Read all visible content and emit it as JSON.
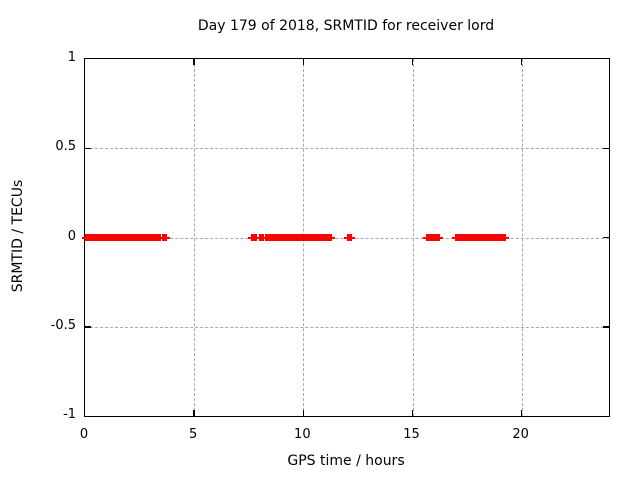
{
  "chart_data": {
    "type": "scatter",
    "title": "Day 179 of 2018, SRMTID for receiver lord",
    "xlabel": "GPS time / hours",
    "ylabel": "SRMTID / TECUs",
    "xlim": [
      0,
      24
    ],
    "ylim": [
      -1,
      1
    ],
    "xticks": [
      0,
      5,
      10,
      15,
      20
    ],
    "yticks": [
      1,
      0.5,
      0,
      -0.5,
      -1
    ],
    "grid": true,
    "legend_position": "none",
    "marker": "plus",
    "series": [
      {
        "name": "SRMTID",
        "color": "#ff0000",
        "y_value": 0,
        "segments_hours": [
          {
            "start": 0.0,
            "end": 3.45
          },
          {
            "start": 3.55,
            "end": 3.65
          },
          {
            "start": 7.62,
            "end": 7.85
          },
          {
            "start": 7.97,
            "end": 8.18
          },
          {
            "start": 8.27,
            "end": 11.3
          },
          {
            "start": 12.0,
            "end": 12.2
          },
          {
            "start": 15.62,
            "end": 16.22
          },
          {
            "start": 16.95,
            "end": 19.25
          }
        ]
      }
    ],
    "colors": {
      "background": "#ffffff",
      "border": "#000000",
      "grid": "#a8a8a8",
      "text": "#000000",
      "series": "#ff0000"
    }
  }
}
